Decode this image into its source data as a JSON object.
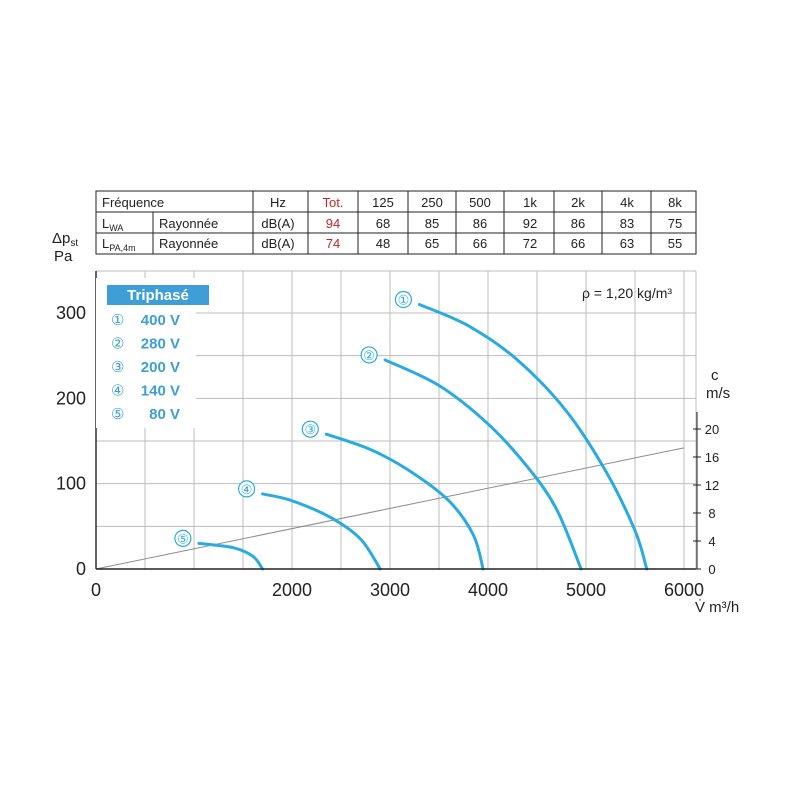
{
  "table": {
    "header": [
      "Fréquence",
      "Hz",
      "Tot.",
      "125",
      "250",
      "500",
      "1k",
      "2k",
      "4k",
      "8k"
    ],
    "rows": [
      {
        "label": "L",
        "label_sub": "WA",
        "type": "Rayonnée",
        "unit": "dB(A)",
        "tot": "94",
        "values": [
          "68",
          "85",
          "86",
          "92",
          "86",
          "83",
          "75"
        ]
      },
      {
        "label": "L",
        "label_sub": "PA,4m",
        "type": "Rayonnée",
        "unit": "dB(A)",
        "tot": "74",
        "values": [
          "48",
          "65",
          "66",
          "72",
          "66",
          "63",
          "55"
        ]
      }
    ]
  },
  "colors": {
    "curve": "#29abe2",
    "legend_header": "#3d9fd6",
    "legend_text": "#3d9fd6",
    "tot_red": "#c1272d",
    "grid": "#bdbdbd"
  },
  "chart_data": {
    "type": "line",
    "ylabel_main": "Δp",
    "ylabel_sub": "st",
    "ylabel_unit": "Pa",
    "xlabel": "V̇ m³/h",
    "x_ticks": [
      0,
      2000,
      3000,
      4000,
      5000,
      6000
    ],
    "y_ticks": [
      0,
      100,
      200,
      300
    ],
    "xlim": [
      0,
      6000
    ],
    "ylim": [
      0,
      300
    ],
    "grid": true,
    "density_label": "ρ = 1,20 kg/m³",
    "legend": {
      "title": "Triphasé",
      "position": "top-left",
      "items": [
        {
          "marker": "①",
          "label": "400 V"
        },
        {
          "marker": "②",
          "label": "280 V"
        },
        {
          "marker": "③",
          "label": "200 V"
        },
        {
          "marker": "④",
          "label": "140 V"
        },
        {
          "marker": "⑤",
          "label": "80 V"
        }
      ]
    },
    "series": [
      {
        "marker": "①",
        "points": [
          [
            3300,
            310
          ],
          [
            3800,
            285
          ],
          [
            4300,
            245
          ],
          [
            4800,
            185
          ],
          [
            5200,
            115
          ],
          [
            5500,
            45
          ],
          [
            5620,
            0
          ]
        ]
      },
      {
        "marker": "②",
        "points": [
          [
            2950,
            245
          ],
          [
            3500,
            215
          ],
          [
            4000,
            170
          ],
          [
            4400,
            120
          ],
          [
            4700,
            70
          ],
          [
            4950,
            0
          ]
        ]
      },
      {
        "marker": "③",
        "points": [
          [
            2350,
            158
          ],
          [
            2800,
            140
          ],
          [
            3200,
            115
          ],
          [
            3600,
            80
          ],
          [
            3850,
            40
          ],
          [
            3950,
            0
          ]
        ]
      },
      {
        "marker": "④",
        "points": [
          [
            1700,
            88
          ],
          [
            2000,
            80
          ],
          [
            2400,
            60
          ],
          [
            2700,
            35
          ],
          [
            2900,
            0
          ]
        ]
      },
      {
        "marker": "⑤",
        "points": [
          [
            1050,
            30
          ],
          [
            1400,
            25
          ],
          [
            1600,
            15
          ],
          [
            1700,
            0
          ]
        ]
      }
    ],
    "system_line": {
      "points": [
        [
          0,
          0
        ],
        [
          6000,
          142
        ]
      ]
    },
    "secondary_axis": {
      "label": "c",
      "unit": "m/s",
      "ticks": [
        0,
        4,
        8,
        12,
        16,
        20
      ],
      "ylim": [
        0,
        24
      ]
    }
  }
}
